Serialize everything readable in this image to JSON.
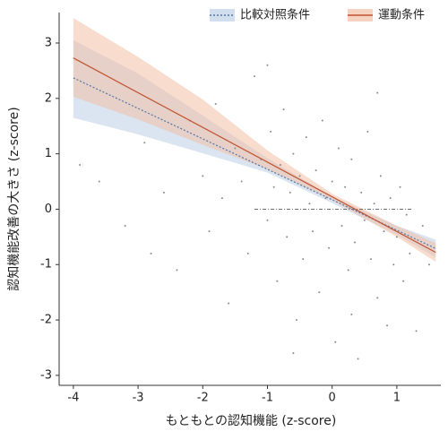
{
  "chart_data": {
    "type": "scatter",
    "xlabel": "もともとの認知機能 (z-score)",
    "ylabel": "認知機能改善の大きさ (z-score)",
    "xlim": [
      -4.22,
      1.68
    ],
    "ylim": [
      -3.18,
      3.55
    ],
    "xticks": [
      -4,
      -3,
      -2,
      -1,
      0,
      1
    ],
    "yticks": [
      -3,
      -2,
      -1,
      0,
      1,
      2,
      3
    ],
    "legend": "top-right",
    "points": {
      "color": "#8a8a8a",
      "x": [
        -3.6,
        -3.2,
        -2.9,
        -2.6,
        -2.4,
        -2.2,
        -2.0,
        -1.9,
        -1.8,
        -1.7,
        -1.6,
        -1.5,
        -1.4,
        -1.3,
        -1.2,
        -1.1,
        -1.0,
        -0.95,
        -0.9,
        -0.85,
        -0.8,
        -0.75,
        -0.7,
        -0.65,
        -0.6,
        -0.55,
        -0.5,
        -0.45,
        -0.4,
        -0.35,
        -0.3,
        -0.25,
        -0.2,
        -0.15,
        -0.1,
        -0.05,
        0.0,
        0.05,
        0.1,
        0.15,
        0.2,
        0.25,
        0.3,
        0.35,
        0.4,
        0.45,
        0.5,
        0.55,
        0.6,
        0.65,
        0.7,
        0.75,
        0.8,
        0.85,
        0.9,
        0.95,
        1.0,
        1.05,
        1.1,
        1.15,
        1.2,
        1.3,
        1.4,
        1.5,
        -3.9,
        -2.8,
        0.3,
        -0.6,
        0.7,
        -1.0
      ],
      "y": [
        0.5,
        -0.3,
        1.2,
        0.3,
        -1.1,
        1.6,
        0.6,
        -0.4,
        1.9,
        0.2,
        -1.7,
        1.1,
        0.5,
        -0.8,
        2.4,
        0.9,
        -0.2,
        1.4,
        0.4,
        -1.3,
        0.8,
        1.8,
        -0.5,
        0.3,
        1.0,
        -2.0,
        0.6,
        -0.9,
        1.3,
        0.1,
        -0.4,
        0.7,
        -1.5,
        1.6,
        0.2,
        -0.7,
        0.5,
        -2.4,
        1.1,
        -0.3,
        0.4,
        -1.1,
        0.9,
        -0.6,
        -2.7,
        0.3,
        -0.2,
        1.4,
        -0.9,
        0.1,
        -1.6,
        0.6,
        -0.4,
        -2.1,
        0.2,
        -1.0,
        -0.5,
        0.4,
        -1.3,
        -0.1,
        -0.8,
        -2.2,
        -0.3,
        -1.0,
        0.8,
        -0.8,
        -1.9,
        -2.6,
        2.1,
        2.6
      ]
    },
    "reference_line": {
      "y": 0,
      "x": [
        -1.2,
        1.25
      ],
      "color": "#555555"
    },
    "series": [
      {
        "name": "比較対照条件",
        "color": "#4f76a8",
        "band_color": "#bcd0e6",
        "line_style": "dotted",
        "line": {
          "x": [
            -4,
            1.6
          ],
          "y": [
            2.37,
            -0.71
          ]
        },
        "band": {
          "x": [
            -4,
            -3,
            -2,
            -1,
            0,
            1,
            1.6
          ],
          "lower": [
            1.65,
            1.35,
            1.01,
            0.66,
            0.11,
            -0.46,
            -0.87
          ],
          "upper": [
            3.05,
            2.45,
            1.69,
            0.92,
            0.23,
            -0.3,
            -0.55
          ]
        }
      },
      {
        "name": "運動条件",
        "color": "#c0522f",
        "band_color": "#f2bfa6",
        "line_style": "solid",
        "line": {
          "x": [
            -4,
            1.6
          ],
          "y": [
            2.73,
            -0.78
          ]
        },
        "band": {
          "x": [
            -4,
            -3,
            -2,
            -1,
            0,
            1,
            1.6
          ],
          "lower": [
            2.03,
            1.62,
            1.16,
            0.72,
            0.16,
            -0.5,
            -0.95
          ],
          "upper": [
            3.45,
            2.75,
            1.98,
            1.06,
            0.28,
            -0.3,
            -0.61
          ]
        }
      }
    ]
  }
}
